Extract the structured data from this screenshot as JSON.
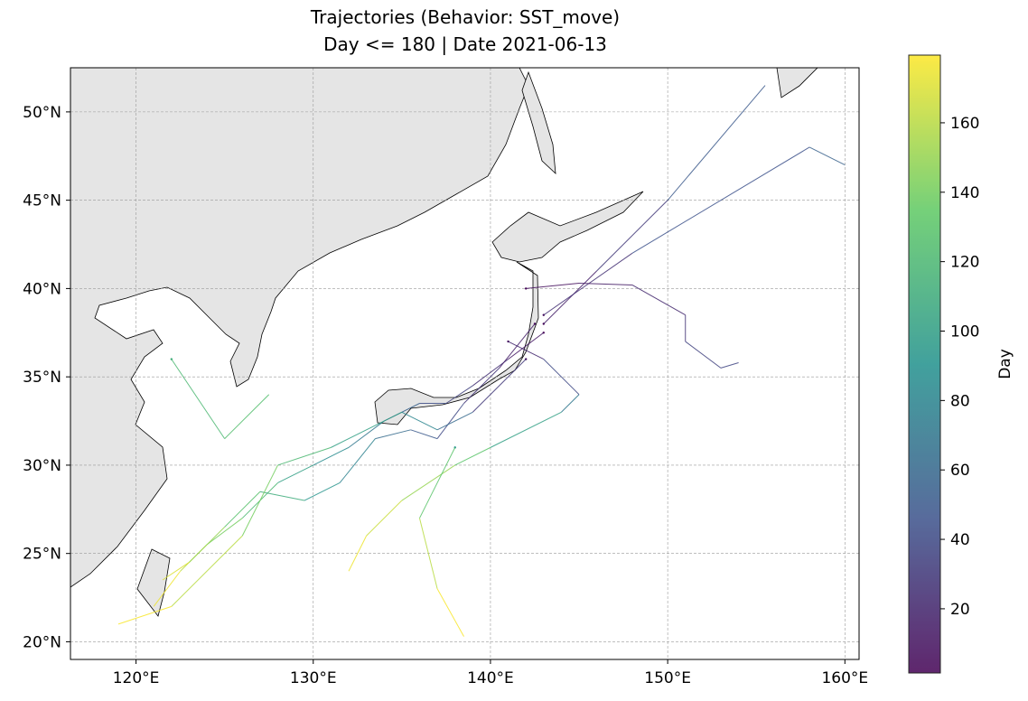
{
  "chart_data": {
    "type": "trajectory-map",
    "title": "Trajectories (Behavior: SST_move)",
    "subtitle": "Day <= 180 | Date 2021-06-13",
    "colorbar_label": "Day",
    "cmap": "viridis",
    "grid": true,
    "xlim": [
      116.3,
      160.8
    ],
    "ylim": [
      19.0,
      52.5
    ],
    "xticks": [
      {
        "value": 120,
        "label": "120°E"
      },
      {
        "value": 130,
        "label": "130°E"
      },
      {
        "value": 140,
        "label": "140°E"
      },
      {
        "value": 150,
        "label": "150°E"
      },
      {
        "value": 160,
        "label": "160°E"
      }
    ],
    "yticks": [
      {
        "value": 20,
        "label": "20°N"
      },
      {
        "value": 25,
        "label": "25°N"
      },
      {
        "value": 30,
        "label": "30°N"
      },
      {
        "value": 35,
        "label": "35°N"
      },
      {
        "value": 40,
        "label": "40°N"
      },
      {
        "value": 45,
        "label": "45°N"
      },
      {
        "value": 50,
        "label": "50°N"
      }
    ],
    "clim": [
      1.5,
      179.5
    ],
    "cticks": [
      20,
      40,
      60,
      80,
      100,
      120,
      140,
      160
    ],
    "trajectories": [
      {
        "lon": [
          143,
          141,
          139,
          137.5,
          136,
          134,
          132,
          130,
          128,
          126,
          124,
          122.5,
          121
        ],
        "lat": [
          37.5,
          36,
          34.5,
          33.5,
          33.5,
          32.5,
          31,
          30,
          29,
          27,
          25.5,
          24,
          22
        ],
        "day": [
          2,
          12,
          25,
          35,
          42,
          55,
          70,
          85,
          100,
          120,
          140,
          160,
          175
        ]
      },
      {
        "lon": [
          142.5,
          140.5,
          138.5,
          137,
          135.5,
          133.5,
          131.5,
          129.5,
          127,
          125,
          123,
          121.5
        ],
        "lat": [
          38,
          35.5,
          33.5,
          31.5,
          32,
          31.5,
          29,
          28,
          28.5,
          26.5,
          24.5,
          23.5
        ],
        "day": [
          4,
          15,
          28,
          40,
          50,
          62,
          78,
          92,
          110,
          128,
          150,
          170
        ]
      },
      {
        "lon": [
          143,
          146,
          150,
          155.5
        ],
        "lat": [
          38,
          41,
          45,
          51.5
        ],
        "day": [
          3,
          15,
          30,
          50
        ]
      },
      {
        "lon": [
          143,
          148,
          158,
          160
        ],
        "lat": [
          38.5,
          42,
          48,
          47
        ],
        "day": [
          5,
          25,
          45,
          55
        ]
      },
      {
        "lon": [
          141,
          143,
          145,
          144,
          140,
          138,
          135,
          133,
          132
        ],
        "lat": [
          37,
          36,
          34,
          33,
          31,
          30,
          28,
          26,
          24
        ],
        "day": [
          6,
          20,
          40,
          70,
          100,
          130,
          150,
          165,
          175
        ]
      },
      {
        "lon": [
          142,
          139,
          137,
          135,
          131,
          128,
          126,
          122,
          119
        ],
        "lat": [
          36,
          33,
          32,
          33,
          31,
          30,
          26,
          22,
          21
        ],
        "day": [
          8,
          30,
          60,
          80,
          100,
          120,
          140,
          160,
          178
        ]
      },
      {
        "lon": [
          122,
          125,
          127.5
        ],
        "lat": [
          36,
          31.5,
          34
        ],
        "day": [
          110,
          120,
          125
        ]
      },
      {
        "lon": [
          138,
          136,
          137,
          138.5
        ],
        "lat": [
          31,
          27,
          23,
          20.3
        ],
        "day": [
          90,
          130,
          160,
          178
        ]
      },
      {
        "lon": [
          142,
          145,
          148,
          151,
          151,
          153,
          154
        ],
        "lat": [
          40,
          40.3,
          40.2,
          38.5,
          37,
          35.5,
          35.8
        ],
        "day": [
          2,
          8,
          14,
          20,
          28,
          35,
          38
        ]
      }
    ]
  }
}
